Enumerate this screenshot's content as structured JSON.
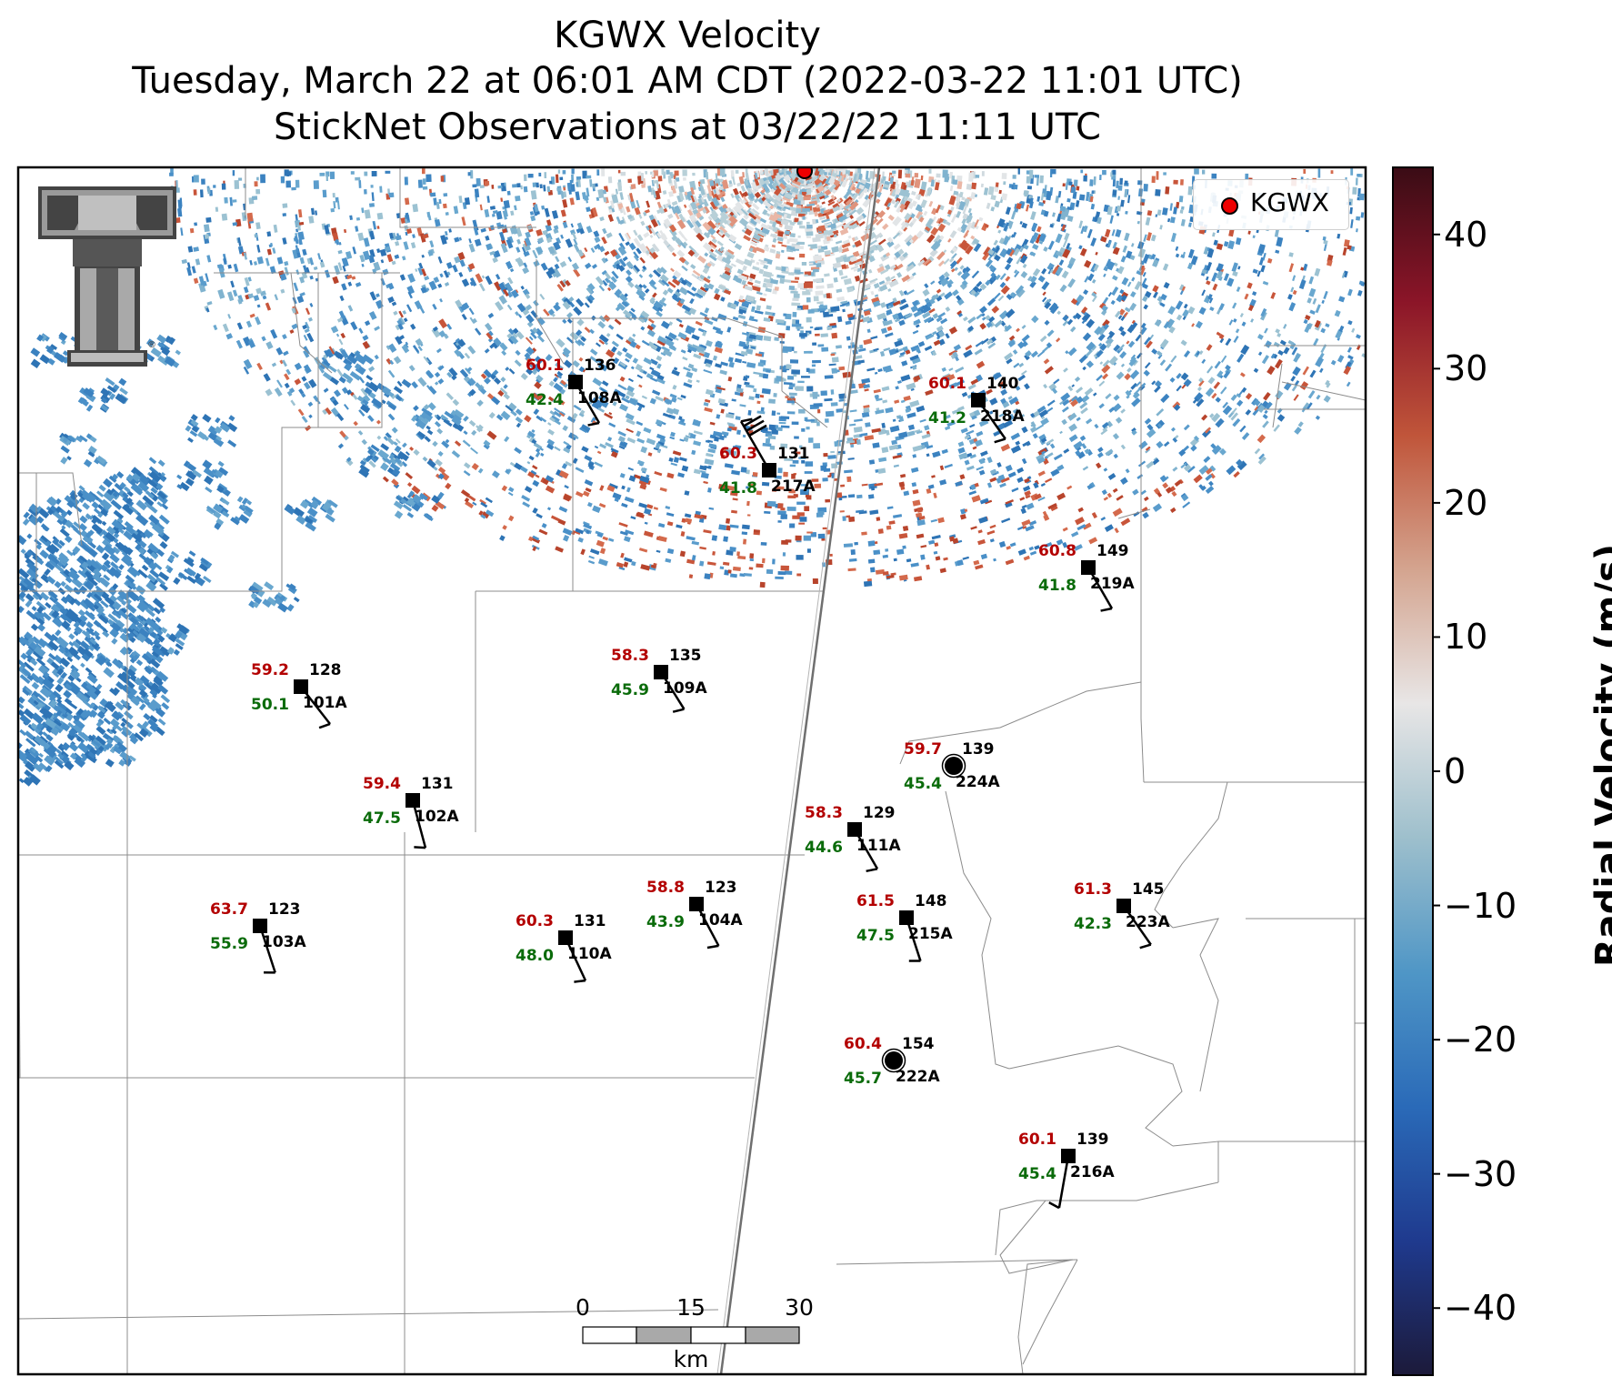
{
  "title": {
    "line1": "KGWX Velocity",
    "line2": "Tuesday, March 22 at 06:01 AM CDT (2022-03-22 11:01 UTC)",
    "line3": "StickNet Observations at 03/22/22 11:11 UTC"
  },
  "legend": {
    "label": "KGWX",
    "marker_color": "#ee0000"
  },
  "colorbar": {
    "title": "Radial Velocity (m/s)",
    "min": -45,
    "max": 45,
    "ticks": [
      {
        "value": 40,
        "label": "40"
      },
      {
        "value": 30,
        "label": "30"
      },
      {
        "value": 20,
        "label": "20"
      },
      {
        "value": 10,
        "label": "10"
      },
      {
        "value": 0,
        "label": "0"
      },
      {
        "value": -10,
        "label": "−10"
      },
      {
        "value": -20,
        "label": "−20"
      },
      {
        "value": -30,
        "label": "−30"
      },
      {
        "value": -40,
        "label": "−40"
      }
    ],
    "colors": [
      "#1c1a3a",
      "#1f3a8e",
      "#2a6ab8",
      "#4f96c6",
      "#9dbfcc",
      "#e8e6e6",
      "#d4a48f",
      "#c0553a",
      "#8b1528",
      "#3a0c15"
    ]
  },
  "scale_bar": {
    "ticks": [
      "0",
      "15",
      "30"
    ],
    "unit": "km"
  },
  "stations": [
    {
      "id": "108A",
      "temp": "60.1",
      "dew": "42.4",
      "pressure": "136",
      "marker": "square"
    },
    {
      "id": "218A",
      "temp": "60.1",
      "dew": "41.2",
      "pressure": "140",
      "marker": "square"
    },
    {
      "id": "217A",
      "temp": "60.3",
      "dew": "41.8",
      "pressure": "131",
      "marker": "square"
    },
    {
      "id": "219A",
      "temp": "60.8",
      "dew": "41.8",
      "pressure": "149",
      "marker": "square"
    },
    {
      "id": "109A",
      "temp": "58.3",
      "dew": "45.9",
      "pressure": "135",
      "marker": "square"
    },
    {
      "id": "101A",
      "temp": "59.2",
      "dew": "50.1",
      "pressure": "128",
      "marker": "square"
    },
    {
      "id": "224A",
      "temp": "59.7",
      "dew": "45.4",
      "pressure": "139",
      "marker": "calm"
    },
    {
      "id": "102A",
      "temp": "59.4",
      "dew": "47.5",
      "pressure": "131",
      "marker": "square"
    },
    {
      "id": "111A",
      "temp": "58.3",
      "dew": "44.6",
      "pressure": "129",
      "marker": "square"
    },
    {
      "id": "104A",
      "temp": "58.8",
      "dew": "43.9",
      "pressure": "123",
      "marker": "square"
    },
    {
      "id": "103A",
      "temp": "63.7",
      "dew": "55.9",
      "pressure": "123",
      "marker": "square"
    },
    {
      "id": "110A",
      "temp": "60.3",
      "dew": "48.0",
      "pressure": "131",
      "marker": "square"
    },
    {
      "id": "215A",
      "temp": "61.5",
      "dew": "47.5",
      "pressure": "148",
      "marker": "square"
    },
    {
      "id": "223A",
      "temp": "61.3",
      "dew": "42.3",
      "pressure": "145",
      "marker": "square"
    },
    {
      "id": "222A",
      "temp": "60.4",
      "dew": "45.7",
      "pressure": "154",
      "marker": "calm"
    },
    {
      "id": "216A",
      "temp": "60.1",
      "dew": "45.4",
      "pressure": "139",
      "marker": "square"
    }
  ],
  "colors": {
    "temp": "#b30000",
    "dew": "#0a6b0a",
    "pressure": "#000000"
  }
}
